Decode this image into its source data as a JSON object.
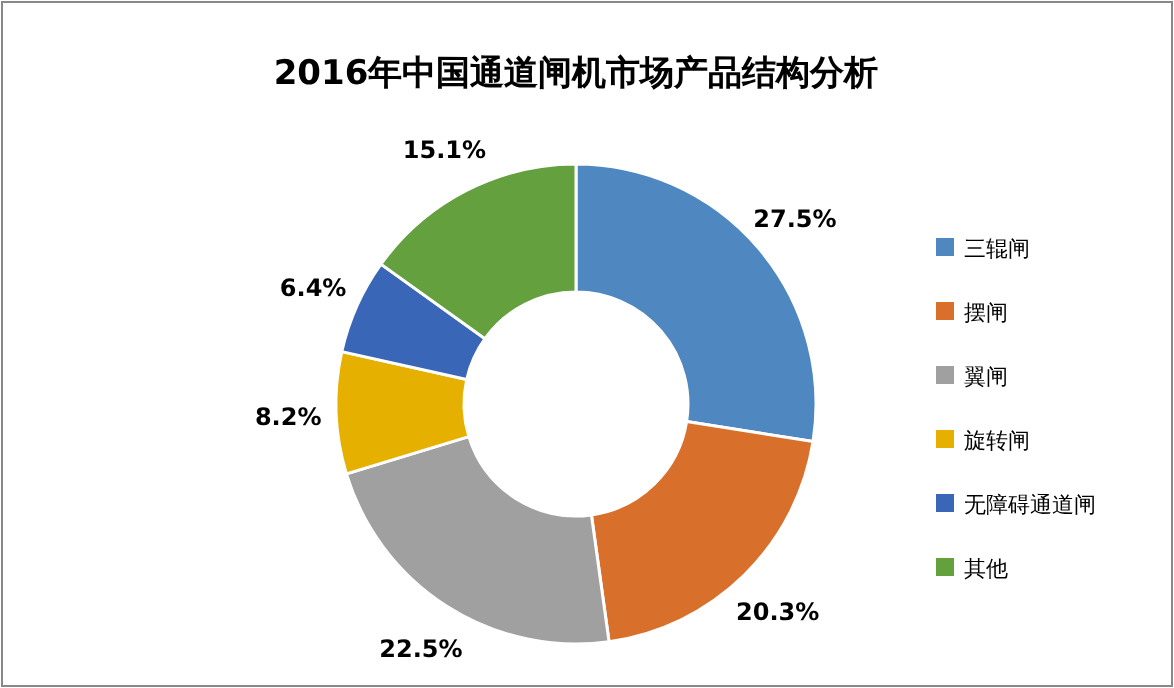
{
  "chart_data": {
    "type": "donut",
    "title": "2016年中国通道闸机市场产品结构分析",
    "categories": [
      "三辊闸",
      "摆闸",
      "翼闸",
      "旋转闸",
      "无障碍通道闸",
      "其他"
    ],
    "values": [
      27.5,
      20.3,
      22.5,
      8.2,
      6.4,
      15.1
    ],
    "colors": [
      "#4f87c0",
      "#d8702c",
      "#a0a0a0",
      "#e6b000",
      "#3a66b8",
      "#64a03e"
    ],
    "value_labels": [
      "27.5%",
      "20.3%",
      "22.5%",
      "8.2%",
      "6.4%",
      "15.1%"
    ],
    "legend": "right"
  }
}
